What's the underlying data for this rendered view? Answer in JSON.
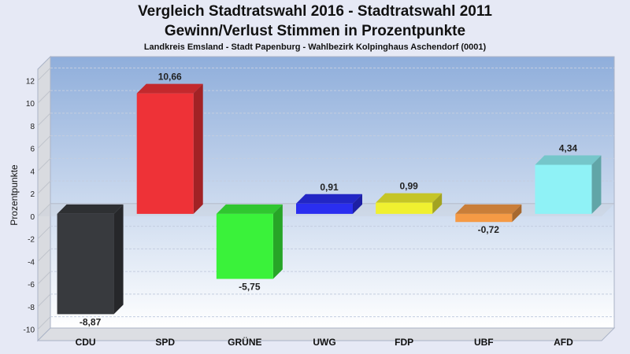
{
  "chart_data": {
    "type": "bar",
    "title": "Vergleich Stadtratswahl 2016 - Stadtratswahl 2011",
    "subtitle": "Gewinn/Verlust Stimmen in Prozentpunkte",
    "subtitle2": "Landkreis Emsland - Stadt Papenburg - Wahlbezirk Kolpinghaus Aschendorf (0001)",
    "ylabel": "Prozentpunkte",
    "xlabel": "",
    "ylim": [
      -11,
      13
    ],
    "yticks": [
      12,
      10,
      8,
      6,
      4,
      2,
      0,
      -2,
      -4,
      -6,
      -8,
      -10
    ],
    "grid": true,
    "categories": [
      "CDU",
      "SPD",
      "GRÜNE",
      "UWG",
      "FDP",
      "UBF",
      "AFD"
    ],
    "values": [
      -8.87,
      10.66,
      -5.75,
      0.91,
      0.99,
      -0.72,
      4.34
    ],
    "value_labels": [
      "-8,87",
      "10,66",
      "-5,75",
      "0,91",
      "0,99",
      "-0,72",
      "4,34"
    ],
    "colors": [
      "#383a3e",
      "#ee3237",
      "#3af23a",
      "#2a2ef0",
      "#f0f030",
      "#f59a45",
      "#8ff2f6"
    ]
  }
}
